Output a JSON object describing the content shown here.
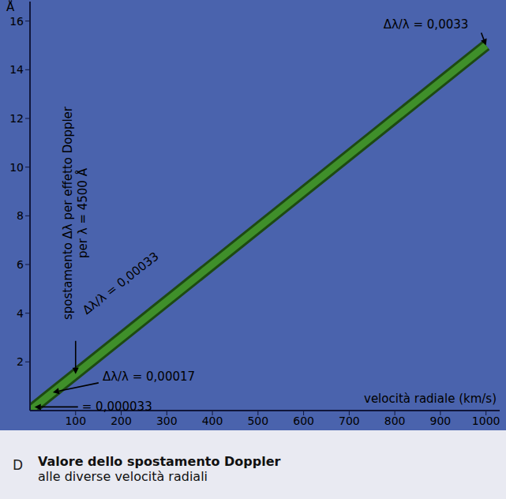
{
  "chart_data": {
    "type": "line",
    "title": "Valore dello spostamento Doppler",
    "subtitle": "alle diverse velocità radiali",
    "figure_letter": "D",
    "x_label": "velocità radiale (km/s)",
    "y_label": [
      "spostamento Δλ per effetto Doppler",
      "per λ = 4500 Å"
    ],
    "y_unit_label": "Å",
    "x": [
      0,
      1000
    ],
    "series": [
      {
        "name": "Δλ",
        "color": "#3f8f2a",
        "values": [
          0,
          15
        ]
      }
    ],
    "xlim": [
      0,
      1030
    ],
    "xticks": [
      100,
      200,
      300,
      400,
      500,
      600,
      700,
      800,
      900,
      1000
    ],
    "ylim": [
      0,
      16.8
    ],
    "yticks": [
      2,
      4,
      6,
      8,
      10,
      12,
      14,
      16
    ],
    "grid": false,
    "annotations": [
      {
        "text": "= 0,000033",
        "x": 10,
        "y": 0.15
      },
      {
        "text": "Δλ/λ = 0,00017",
        "x": 50,
        "y": 0.75
      },
      {
        "text": "Δλ/λ = 0,00033",
        "x": 100,
        "y": 1.5
      },
      {
        "text": "Δλ/λ = 0,0033",
        "x": 1000,
        "y": 15
      }
    ]
  }
}
